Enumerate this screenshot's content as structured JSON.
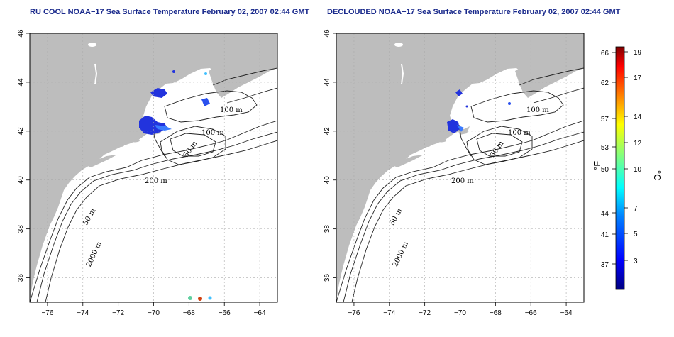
{
  "panels": [
    {
      "title": "RU COOL NOAA−17 Sea Surface Temperature February 02, 2007 02:44 GMT",
      "contour_labels": [
        "100 m",
        "100 m",
        "50 m",
        "200 m",
        "50 m",
        "2000 m"
      ]
    },
    {
      "title": "DECLOUDED NOAA−17 Sea Surface Temperature February 02, 2007 02:44 GMT",
      "contour_labels": [
        "100 m",
        "100 m",
        "50 m",
        "200 m",
        "50 m",
        "2000 m"
      ]
    }
  ],
  "axes": {
    "x_ticks": [
      "−76",
      "−74",
      "−72",
      "−70",
      "−68",
      "−66",
      "−64"
    ],
    "x_values": [
      -76,
      -74,
      -72,
      -70,
      -68,
      -66,
      -64
    ],
    "y_ticks": [
      "36",
      "38",
      "40",
      "42",
      "44",
      "46"
    ],
    "y_values": [
      36,
      38,
      40,
      42,
      44,
      46
    ],
    "lon_range": [
      -77,
      -63
    ],
    "lat_range": [
      35,
      46
    ]
  },
  "colorbar": {
    "fahrenheit_label": "°F",
    "celsius_label": "°C",
    "fahrenheit_ticks": [
      "66",
      "62",
      "57",
      "53",
      "50",
      "44",
      "41",
      "37"
    ],
    "celsius_ticks": [
      "19",
      "17",
      "14",
      "12",
      "10",
      "7",
      "5",
      "3"
    ],
    "colors": [
      "#00007f",
      "#0000ff",
      "#0080ff",
      "#00ffff",
      "#80ff80",
      "#ffff00",
      "#ff8000",
      "#ff0000",
      "#7f0000"
    ]
  },
  "colors": {
    "land": "#bdbdbd",
    "ocean": "#ffffff",
    "sst_cold": "#2233dd",
    "title": "#1a2a8c"
  }
}
